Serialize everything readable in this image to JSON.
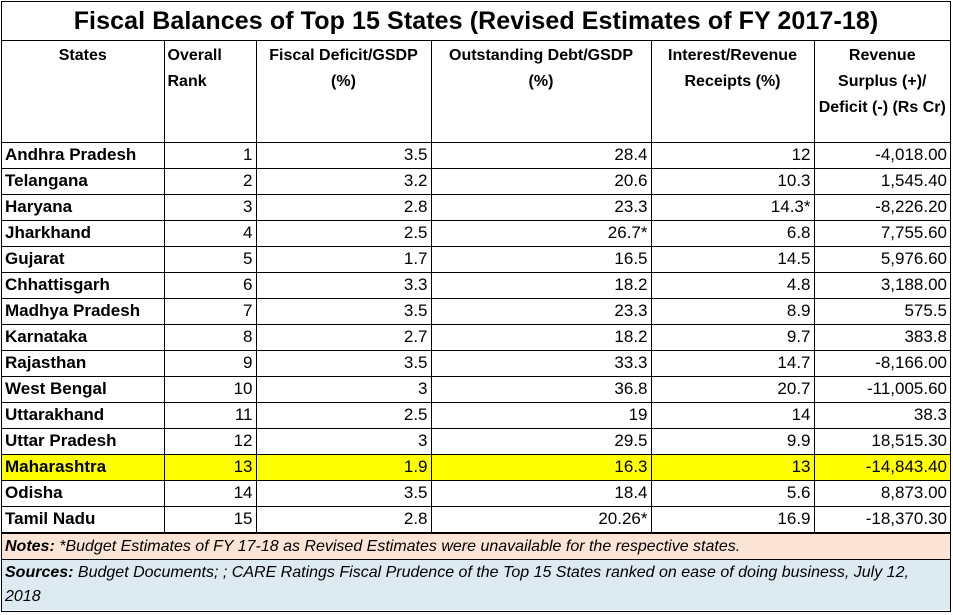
{
  "title": "Fiscal Balances of Top 15 States (Revised Estimates of FY 2017-18)",
  "columns": [
    "States",
    "Overall Rank",
    "Fiscal Deficit/GSDP (%)",
    "Outstanding Debt/GSDP (%)",
    "Interest/Revenue Receipts (%)",
    "Revenue Surplus (+)/ Deficit (-) (Rs Cr)"
  ],
  "rows": [
    {
      "state": "Andhra Pradesh",
      "rank": "1",
      "fd": "3.5",
      "debt": "28.4",
      "interest": "12",
      "rev": "-4,018.00"
    },
    {
      "state": "Telangana",
      "rank": "2",
      "fd": "3.2",
      "debt": "20.6",
      "interest": "10.3",
      "rev": "1,545.40"
    },
    {
      "state": "Haryana",
      "rank": "3",
      "fd": "2.8",
      "debt": "23.3",
      "interest": "14.3*",
      "rev": "-8,226.20"
    },
    {
      "state": "Jharkhand",
      "rank": "4",
      "fd": "2.5",
      "debt": "26.7*",
      "interest": "6.8",
      "rev": "7,755.60"
    },
    {
      "state": "Gujarat",
      "rank": "5",
      "fd": "1.7",
      "debt": "16.5",
      "interest": "14.5",
      "rev": "5,976.60"
    },
    {
      "state": "Chhattisgarh",
      "rank": "6",
      "fd": "3.3",
      "debt": "18.2",
      "interest": "4.8",
      "rev": "3,188.00"
    },
    {
      "state": "Madhya Pradesh",
      "rank": "7",
      "fd": "3.5",
      "debt": "23.3",
      "interest": "8.9",
      "rev": "575.5"
    },
    {
      "state": "Karnataka",
      "rank": "8",
      "fd": "2.7",
      "debt": "18.2",
      "interest": "9.7",
      "rev": "383.8"
    },
    {
      "state": "Rajasthan",
      "rank": "9",
      "fd": "3.5",
      "debt": "33.3",
      "interest": "14.7",
      "rev": "-8,166.00"
    },
    {
      "state": "West Bengal",
      "rank": "10",
      "fd": "3",
      "debt": "36.8",
      "interest": "20.7",
      "rev": "-11,005.60"
    },
    {
      "state": "Uttarakhand",
      "rank": "11",
      "fd": "2.5",
      "debt": "19",
      "interest": "14",
      "rev": "38.3"
    },
    {
      "state": "Uttar Pradesh",
      "rank": "12",
      "fd": "3",
      "debt": "29.5",
      "interest": "9.9",
      "rev": "18,515.30"
    },
    {
      "state": "Maharashtra",
      "rank": "13",
      "fd": "1.9",
      "debt": "16.3",
      "interest": "13",
      "rev": "-14,843.40",
      "highlight": true
    },
    {
      "state": "Odisha",
      "rank": "14",
      "fd": "3.5",
      "debt": "18.4",
      "interest": "5.6",
      "rev": "8,873.00"
    },
    {
      "state": "Tamil Nadu",
      "rank": "15",
      "fd": "2.8",
      "debt": "20.26*",
      "interest": "16.9",
      "rev": "-18,370.30"
    }
  ],
  "notes": {
    "label": "Notes:",
    "text": "*Budget Estimates of FY 17-18 as Revised Estimates were unavailable for the respective states."
  },
  "sources": {
    "label": "Sources:",
    "text": "Budget Documents; ; CARE Ratings Fiscal Prudence of the Top 15 States ranked on ease of doing business, July 12, 2018"
  },
  "colors": {
    "highlight": "#ffff00",
    "notes_bg": "#fbe4d5",
    "sources_bg": "#deeaf1"
  }
}
